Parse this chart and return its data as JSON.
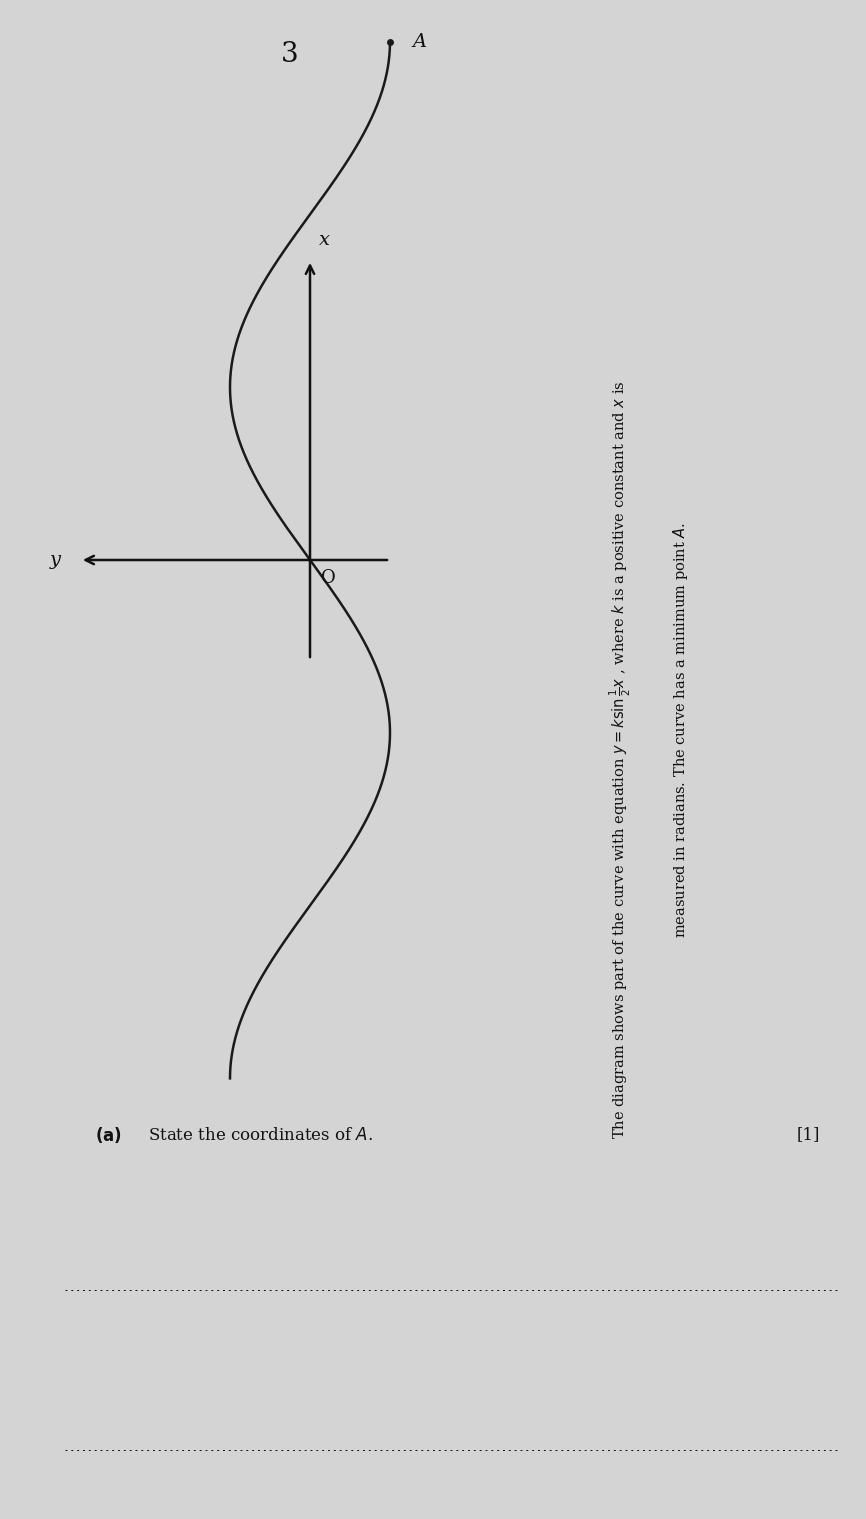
{
  "background_color": "#d4d4d4",
  "page_number": "3",
  "curve_color": "#1a1a1a",
  "axis_color": "#111111",
  "text_color": "#111111",
  "point_A_label": "A",
  "origin_label": "O",
  "x_label": "x",
  "y_label": "y",
  "k_value": 1.0,
  "part_a_label": "(a)",
  "part_a_text": "State the coordinates of $A$.",
  "part_a_marks": "[1]",
  "desc_line1": "The diagram shows part of the curve with equation $y = k\\sin\\tfrac{1}{2}x$ , where $k$ is a positive constant and $x$ is",
  "desc_line2": "measured in radians. The curve has a minimum point $A$.",
  "figwidth": 8.66,
  "figheight": 15.19,
  "dpi": 100
}
